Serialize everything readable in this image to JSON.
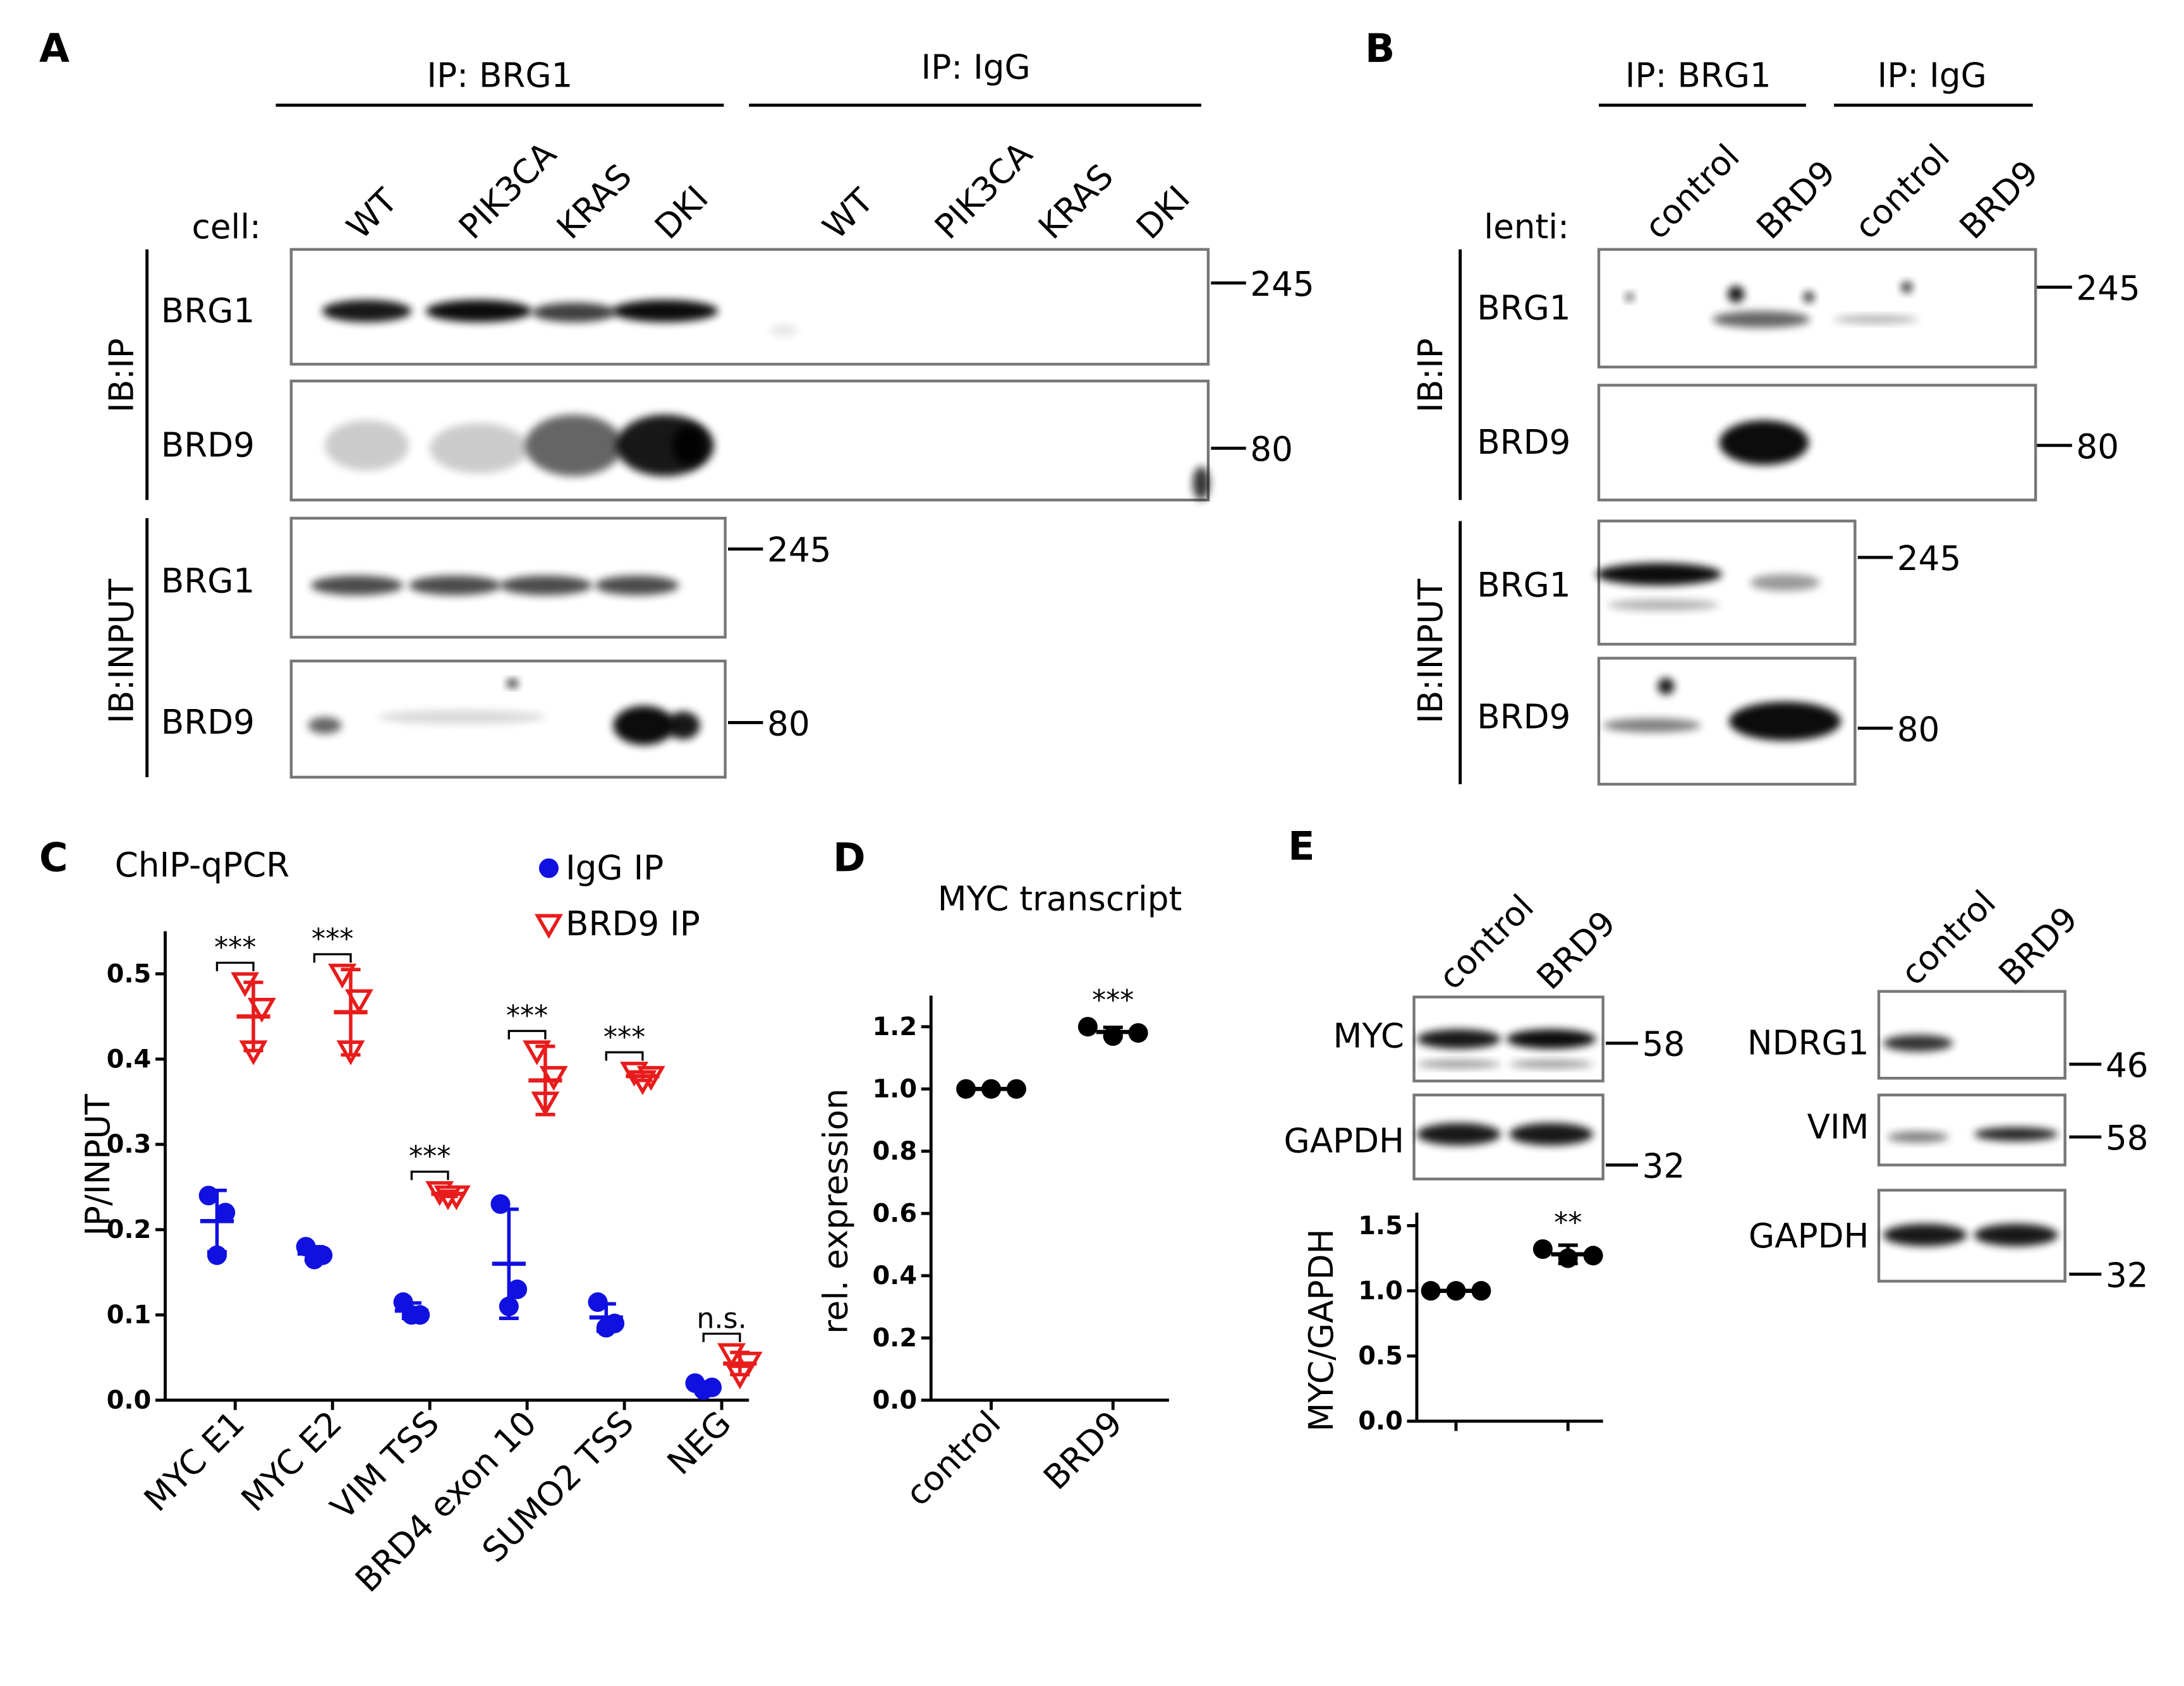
{
  "panels": {
    "A": {
      "letter": "A",
      "groups": [
        "IP: BRG1",
        "IP: IgG"
      ],
      "lane_prefix": "cell:",
      "lanes": [
        "WT",
        "PIK3CA",
        "KRAS",
        "DKI",
        "WT",
        "PIK3CA",
        "KRAS",
        "DKI"
      ],
      "ib": [
        "IB:IP",
        "IB:INPUT"
      ],
      "rows": [
        "BRG1",
        "BRD9",
        "BRG1",
        "BRD9"
      ],
      "markers": [
        245,
        80,
        245,
        80
      ]
    },
    "B": {
      "letter": "B",
      "groups": [
        "IP: BRG1",
        "IP: IgG"
      ],
      "lane_prefix": "lenti:",
      "lanes": [
        "control",
        "BRD9",
        "control",
        "BRD9"
      ],
      "ib": [
        "IB:IP",
        "IB:INPUT"
      ],
      "rows": [
        "BRG1",
        "BRD9",
        "BRG1",
        "BRD9"
      ],
      "markers": [
        245,
        80,
        245,
        80
      ]
    },
    "E": {
      "letter": "E",
      "left": {
        "lanes": [
          "control",
          "BRD9"
        ],
        "rows": [
          "MYC",
          "GAPDH"
        ],
        "markers": [
          58,
          32
        ]
      },
      "right": {
        "lanes": [
          "control",
          "BRD9"
        ],
        "rows": [
          "NDRG1",
          "VIM",
          "GAPDH"
        ],
        "markers": [
          46,
          58,
          32
        ]
      }
    }
  },
  "chart_data": [
    {
      "type": "dot",
      "panel_label": "C",
      "title": "ChIP-qPCR",
      "y_label": "IP/INPUT",
      "categories": [
        "MYC E1",
        "MYC E2",
        "VIM TSS",
        "BRD4 exon 10",
        "SUMO2 TSS",
        "NEG"
      ],
      "series": [
        {
          "name": "IgG IP",
          "color": "#1010e0",
          "marker": "circle",
          "values": [
            [
              0.24,
              0.22,
              0.17
            ],
            [
              0.18,
              0.17,
              0.165
            ],
            [
              0.115,
              0.1,
              0.1
            ],
            [
              0.23,
              0.13,
              0.11
            ],
            [
              0.115,
              0.09,
              0.085
            ],
            [
              0.02,
              0.015,
              0.012
            ]
          ],
          "means": [
            0.21,
            0.172,
            0.105,
            0.16,
            0.097,
            0.016
          ],
          "errors": [
            0.036,
            0.008,
            0.009,
            0.064,
            0.016,
            0.004
          ]
        },
        {
          "name": "BRD9 IP",
          "color": "#e81c1c",
          "marker": "triangle-down-open",
          "values": [
            [
              0.49,
              0.46,
              0.41
            ],
            [
              0.5,
              0.47,
              0.41
            ],
            [
              0.245,
              0.24,
              0.24
            ],
            [
              0.41,
              0.38,
              0.35
            ],
            [
              0.385,
              0.38,
              0.375
            ],
            [
              0.055,
              0.045,
              0.03
            ]
          ],
          "means": [
            0.45,
            0.455,
            0.242,
            0.375,
            0.38,
            0.043
          ],
          "errors": [
            0.04,
            0.05,
            0.003,
            0.04,
            0.005,
            0.013
          ]
        }
      ],
      "annotations": [
        "***",
        "***",
        "***",
        "***",
        "***",
        "n.s."
      ],
      "ylim": [
        0,
        0.55
      ],
      "yticks": [
        {
          "value": 0,
          "label": "0.0"
        },
        0.1,
        0.2,
        0.3,
        0.4,
        0.5
      ],
      "legend": "top-right",
      "grid": false
    },
    {
      "type": "dot",
      "panel_label": "D",
      "title": "MYC transcript",
      "y_label": "rel. expression",
      "categories": [
        "control",
        "BRD9"
      ],
      "series": [
        {
          "color": "#000000",
          "marker": "circle",
          "values": [
            [
              1,
              1,
              1
            ],
            [
              1.2,
              1.17,
              1.18
            ]
          ],
          "means": [
            1,
            1.183
          ],
          "errors": [
            0,
            0.015
          ]
        }
      ],
      "annotations": [
        null,
        "***"
      ],
      "ylim": [
        0,
        1.3
      ],
      "yticks": [
        {
          "value": 0,
          "label": "0.0"
        },
        0.2,
        0.4,
        0.6,
        0.8,
        {
          "value": 1,
          "label": "1.0"
        },
        1.2
      ],
      "grid": false
    },
    {
      "type": "dot",
      "y_label": "MYC/GAPDH",
      "categories": [
        "control",
        "BRD9"
      ],
      "series": [
        {
          "color": "#000000",
          "marker": "circle",
          "values": [
            [
              1,
              1,
              1
            ],
            [
              1.32,
              1.25,
              1.27
            ]
          ],
          "means": [
            1,
            1.28
          ],
          "errors": [
            0,
            0.07
          ]
        }
      ],
      "annotations": [
        null,
        "**"
      ],
      "ylim": [
        0,
        1.6
      ],
      "yticks": [
        {
          "value": 0,
          "label": "0.0"
        },
        0.5,
        {
          "value": 1,
          "label": "1.0"
        },
        1.5
      ],
      "grid": false
    }
  ]
}
